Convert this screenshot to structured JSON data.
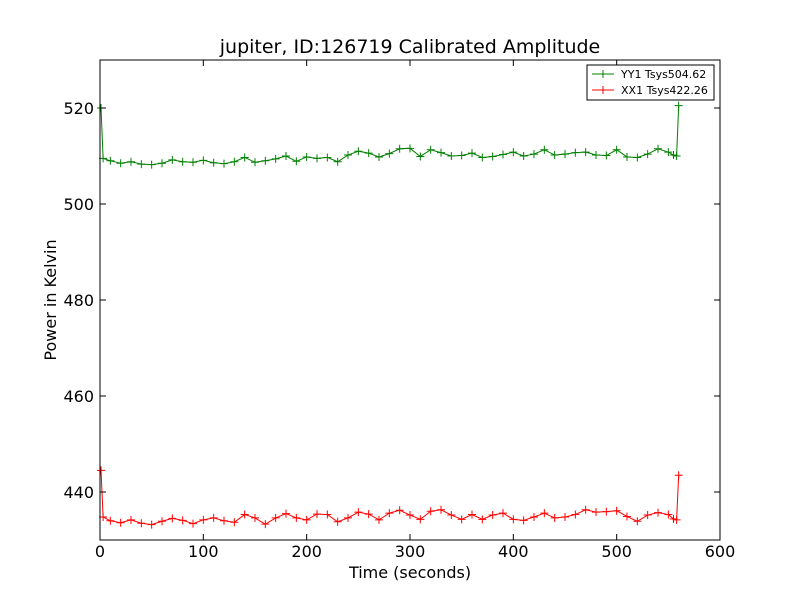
{
  "chart_data": {
    "type": "line",
    "title": "jupiter, ID:126719 Calibrated Amplitude",
    "xlabel": "Time (seconds)",
    "ylabel": "Power in Kelvin",
    "xlim": [
      0,
      600
    ],
    "ylim": [
      430,
      530
    ],
    "xticks": [
      0,
      100,
      200,
      300,
      400,
      500,
      600
    ],
    "yticks": [
      440,
      460,
      480,
      500,
      520
    ],
    "grid": false,
    "legend_position": "top-right",
    "series": [
      {
        "name": "YY1 Tsys504.62",
        "color": "#008000",
        "marker": "+",
        "x": [
          1,
          3,
          10,
          20,
          30,
          40,
          50,
          60,
          70,
          80,
          90,
          100,
          110,
          120,
          130,
          140,
          150,
          160,
          170,
          180,
          190,
          200,
          210,
          220,
          230,
          240,
          250,
          260,
          270,
          280,
          290,
          300,
          310,
          320,
          330,
          340,
          350,
          360,
          370,
          380,
          390,
          400,
          410,
          420,
          430,
          440,
          450,
          460,
          470,
          480,
          490,
          500,
          510,
          520,
          530,
          540,
          550,
          555,
          558,
          560
        ],
        "y": [
          520,
          509.5,
          509,
          508.5,
          508.8,
          508.3,
          508.2,
          508.5,
          509.2,
          508.8,
          508.7,
          509.1,
          508.6,
          508.4,
          508.8,
          509.7,
          508.7,
          509.0,
          509.4,
          510.0,
          508.9,
          509.8,
          509.5,
          509.7,
          508.8,
          510.2,
          511.0,
          510.6,
          509.8,
          510.5,
          511.5,
          511.6,
          509.9,
          511.3,
          510.7,
          510.0,
          510.1,
          510.6,
          509.7,
          509.9,
          510.3,
          510.8,
          510.0,
          510.4,
          511.3,
          510.2,
          510.4,
          510.7,
          510.8,
          510.2,
          510.1,
          511.3,
          509.8,
          509.7,
          510.4,
          511.5,
          510.8,
          510.2,
          510.0,
          520.5
        ]
      },
      {
        "name": "XX1 Tsys422.26",
        "color": "#ff0000",
        "marker": "+",
        "x": [
          1,
          3,
          10,
          20,
          30,
          40,
          50,
          60,
          70,
          80,
          90,
          100,
          110,
          120,
          130,
          140,
          150,
          160,
          170,
          180,
          190,
          200,
          210,
          220,
          230,
          240,
          250,
          260,
          270,
          280,
          290,
          300,
          310,
          320,
          330,
          340,
          350,
          360,
          370,
          380,
          390,
          400,
          410,
          420,
          430,
          440,
          450,
          460,
          470,
          480,
          490,
          500,
          510,
          520,
          530,
          540,
          550,
          555,
          558,
          560
        ],
        "y": [
          444.5,
          434.8,
          434.0,
          433.6,
          434.2,
          433.5,
          433.2,
          433.9,
          434.5,
          434.1,
          433.4,
          434.2,
          434.6,
          434.0,
          433.7,
          435.3,
          434.6,
          433.3,
          434.6,
          435.5,
          434.6,
          434.2,
          435.4,
          435.3,
          433.8,
          434.6,
          435.8,
          435.4,
          434.2,
          435.6,
          436.2,
          435.2,
          434.3,
          436.0,
          436.3,
          435.2,
          434.3,
          435.3,
          434.3,
          435.2,
          435.6,
          434.3,
          434.1,
          434.8,
          435.6,
          434.6,
          434.8,
          435.3,
          436.3,
          435.8,
          435.9,
          436.1,
          434.9,
          433.9,
          435.2,
          435.7,
          435.3,
          434.4,
          434.2,
          443.5
        ]
      }
    ]
  }
}
